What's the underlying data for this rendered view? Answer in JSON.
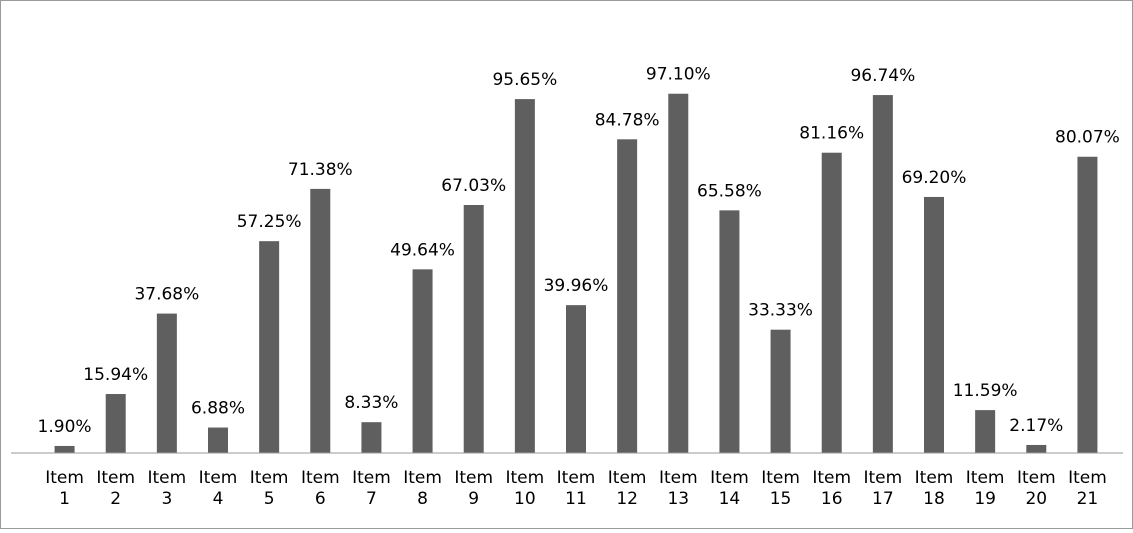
{
  "colors": {
    "bar": "#5f5f5f",
    "axis": "#9a9a9a",
    "background": "#ffffff"
  },
  "chart_data": {
    "type": "bar",
    "title": "",
    "xlabel": "",
    "ylabel": "",
    "ylim": [
      0,
      100
    ],
    "grid": false,
    "legend": "none",
    "categories": [
      [
        "Item",
        "1"
      ],
      [
        "Item",
        "2"
      ],
      [
        "Item",
        "3"
      ],
      [
        "Item",
        "4"
      ],
      [
        "Item",
        "5"
      ],
      [
        "Item",
        "6"
      ],
      [
        "Item",
        "7"
      ],
      [
        "Item",
        "8"
      ],
      [
        "Item",
        "9"
      ],
      [
        "Item",
        "10"
      ],
      [
        "Item",
        "11"
      ],
      [
        "Item",
        "12"
      ],
      [
        "Item",
        "13"
      ],
      [
        "Item",
        "14"
      ],
      [
        "Item",
        "15"
      ],
      [
        "Item",
        "16"
      ],
      [
        "Item",
        "17"
      ],
      [
        "Item",
        "18"
      ],
      [
        "Item",
        "19"
      ],
      [
        "Item",
        "20"
      ],
      [
        "Item",
        "21"
      ]
    ],
    "values": [
      1.9,
      15.94,
      37.68,
      6.88,
      57.25,
      71.38,
      8.33,
      49.64,
      67.03,
      95.65,
      39.96,
      84.78,
      97.1,
      65.58,
      33.33,
      81.16,
      96.74,
      69.2,
      11.59,
      2.17,
      80.07
    ],
    "data_labels": [
      "1.90%",
      "15.94%",
      "37.68%",
      "6.88%",
      "57.25%",
      "71.38%",
      "8.33%",
      "49.64%",
      "67.03%",
      "95.65%",
      "39.96%",
      "84.78%",
      "97.10%",
      "65.58%",
      "33.33%",
      "81.16%",
      "96.74%",
      "69.20%",
      "11.59%",
      "2.17%",
      "80.07%"
    ]
  }
}
